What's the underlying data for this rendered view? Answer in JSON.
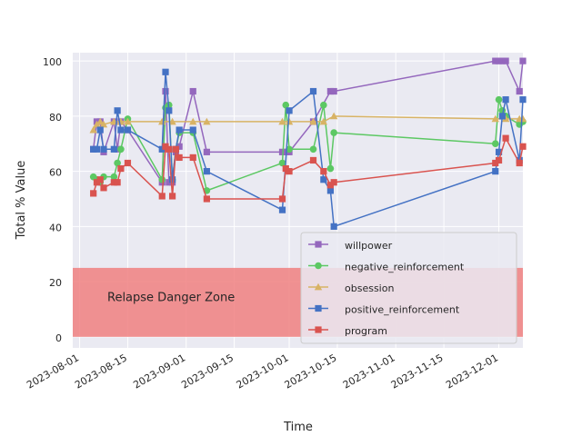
{
  "chart_data": {
    "type": "line",
    "xlabel": "Time",
    "ylabel": "Total % Value",
    "x_ticks": [
      "2023-08-01",
      "2023-08-15",
      "2023-09-01",
      "2023-09-15",
      "2023-10-01",
      "2023-10-15",
      "2023-11-01",
      "2023-11-15",
      "2023-12-01"
    ],
    "y_ticks": [
      0,
      20,
      40,
      60,
      80,
      100
    ],
    "xlim": [
      "2023-07-30",
      "2023-12-08"
    ],
    "ylim": [
      -4,
      103
    ],
    "grid": true,
    "legend_position": "lower-right",
    "annotation": {
      "text": "Relapse Danger Zone",
      "y_range": [
        0,
        25
      ],
      "color": "#f08080"
    },
    "series": [
      {
        "name": "willpower",
        "color": "#9467bd",
        "marker": "square",
        "points": [
          [
            "2023-08-05",
            68
          ],
          [
            "2023-08-06",
            78
          ],
          [
            "2023-08-07",
            78
          ],
          [
            "2023-08-08",
            67
          ],
          [
            "2023-08-11",
            78
          ],
          [
            "2023-08-12",
            68
          ],
          [
            "2023-08-13",
            78
          ],
          [
            "2023-08-15",
            75
          ],
          [
            "2023-08-25",
            56
          ],
          [
            "2023-08-26",
            89
          ],
          [
            "2023-08-27",
            56
          ],
          [
            "2023-08-28",
            56
          ],
          [
            "2023-08-29",
            67
          ],
          [
            "2023-08-30",
            69
          ],
          [
            "2023-09-03",
            89
          ],
          [
            "2023-09-07",
            67
          ],
          [
            "2023-09-29",
            67
          ],
          [
            "2023-09-30",
            67
          ],
          [
            "2023-10-01",
            67
          ],
          [
            "2023-10-08",
            78
          ],
          [
            "2023-10-13",
            89
          ],
          [
            "2023-10-14",
            89
          ],
          [
            "2023-11-30",
            100
          ],
          [
            "2023-12-01",
            100
          ],
          [
            "2023-12-02",
            100
          ],
          [
            "2023-12-03",
            100
          ],
          [
            "2023-12-07",
            89
          ],
          [
            "2023-12-08",
            100
          ]
        ]
      },
      {
        "name": "negative_reinforcement",
        "color": "#5cc863",
        "marker": "circle",
        "points": [
          [
            "2023-08-05",
            58
          ],
          [
            "2023-08-06",
            57
          ],
          [
            "2023-08-07",
            56
          ],
          [
            "2023-08-08",
            58
          ],
          [
            "2023-08-11",
            58
          ],
          [
            "2023-08-12",
            63
          ],
          [
            "2023-08-13",
            68
          ],
          [
            "2023-08-15",
            79
          ],
          [
            "2023-08-25",
            57
          ],
          [
            "2023-08-26",
            83
          ],
          [
            "2023-08-27",
            84
          ],
          [
            "2023-08-28",
            57
          ],
          [
            "2023-08-29",
            68
          ],
          [
            "2023-08-30",
            74
          ],
          [
            "2023-09-03",
            74
          ],
          [
            "2023-09-07",
            53
          ],
          [
            "2023-09-29",
            63
          ],
          [
            "2023-09-30",
            84
          ],
          [
            "2023-10-01",
            68
          ],
          [
            "2023-10-08",
            68
          ],
          [
            "2023-10-11",
            84
          ],
          [
            "2023-10-13",
            61
          ],
          [
            "2023-10-14",
            74
          ],
          [
            "2023-11-30",
            70
          ],
          [
            "2023-12-01",
            86
          ],
          [
            "2023-12-02",
            82
          ],
          [
            "2023-12-03",
            80
          ],
          [
            "2023-12-07",
            77
          ],
          [
            "2023-12-08",
            78
          ]
        ]
      },
      {
        "name": "obsession",
        "color": "#d8b365",
        "marker": "triangle",
        "points": [
          [
            "2023-08-05",
            75
          ],
          [
            "2023-08-06",
            77
          ],
          [
            "2023-08-07",
            78
          ],
          [
            "2023-08-08",
            77
          ],
          [
            "2023-08-11",
            78
          ],
          [
            "2023-08-13",
            78
          ],
          [
            "2023-08-15",
            78
          ],
          [
            "2023-08-25",
            78
          ],
          [
            "2023-08-28",
            78
          ],
          [
            "2023-09-03",
            78
          ],
          [
            "2023-09-07",
            78
          ],
          [
            "2023-09-29",
            78
          ],
          [
            "2023-10-01",
            78
          ],
          [
            "2023-10-08",
            78
          ],
          [
            "2023-10-11",
            78
          ],
          [
            "2023-10-14",
            80
          ],
          [
            "2023-11-30",
            79
          ],
          [
            "2023-12-03",
            79
          ],
          [
            "2023-12-07",
            79
          ],
          [
            "2023-12-08",
            79
          ]
        ]
      },
      {
        "name": "positive_reinforcement",
        "color": "#4472c4",
        "marker": "square",
        "points": [
          [
            "2023-08-05",
            68
          ],
          [
            "2023-08-06",
            68
          ],
          [
            "2023-08-07",
            75
          ],
          [
            "2023-08-08",
            68
          ],
          [
            "2023-08-11",
            68
          ],
          [
            "2023-08-12",
            82
          ],
          [
            "2023-08-13",
            75
          ],
          [
            "2023-08-15",
            75
          ],
          [
            "2023-08-25",
            68
          ],
          [
            "2023-08-26",
            96
          ],
          [
            "2023-08-27",
            82
          ],
          [
            "2023-08-28",
            57
          ],
          [
            "2023-08-29",
            68
          ],
          [
            "2023-08-30",
            75
          ],
          [
            "2023-09-03",
            75
          ],
          [
            "2023-09-07",
            60
          ],
          [
            "2023-09-29",
            46
          ],
          [
            "2023-10-01",
            82
          ],
          [
            "2023-10-08",
            89
          ],
          [
            "2023-10-11",
            57
          ],
          [
            "2023-10-13",
            53
          ],
          [
            "2023-10-14",
            40
          ],
          [
            "2023-11-30",
            60
          ],
          [
            "2023-12-01",
            67
          ],
          [
            "2023-12-02",
            80
          ],
          [
            "2023-12-03",
            86
          ],
          [
            "2023-12-07",
            64
          ],
          [
            "2023-12-08",
            86
          ]
        ]
      },
      {
        "name": "program",
        "color": "#d9534f",
        "marker": "square",
        "points": [
          [
            "2023-08-05",
            52
          ],
          [
            "2023-08-06",
            56
          ],
          [
            "2023-08-07",
            57
          ],
          [
            "2023-08-08",
            54
          ],
          [
            "2023-08-11",
            56
          ],
          [
            "2023-08-12",
            56
          ],
          [
            "2023-08-13",
            61
          ],
          [
            "2023-08-15",
            63
          ],
          [
            "2023-08-25",
            51
          ],
          [
            "2023-08-26",
            69
          ],
          [
            "2023-08-27",
            68
          ],
          [
            "2023-08-28",
            51
          ],
          [
            "2023-08-29",
            68
          ],
          [
            "2023-08-30",
            65
          ],
          [
            "2023-09-03",
            65
          ],
          [
            "2023-09-07",
            50
          ],
          [
            "2023-09-29",
            50
          ],
          [
            "2023-09-30",
            61
          ],
          [
            "2023-10-01",
            60
          ],
          [
            "2023-10-08",
            64
          ],
          [
            "2023-10-11",
            60
          ],
          [
            "2023-10-13",
            55
          ],
          [
            "2023-10-14",
            56
          ],
          [
            "2023-11-30",
            63
          ],
          [
            "2023-12-01",
            64
          ],
          [
            "2023-12-03",
            72
          ],
          [
            "2023-12-07",
            63
          ],
          [
            "2023-12-08",
            69
          ]
        ]
      }
    ]
  }
}
